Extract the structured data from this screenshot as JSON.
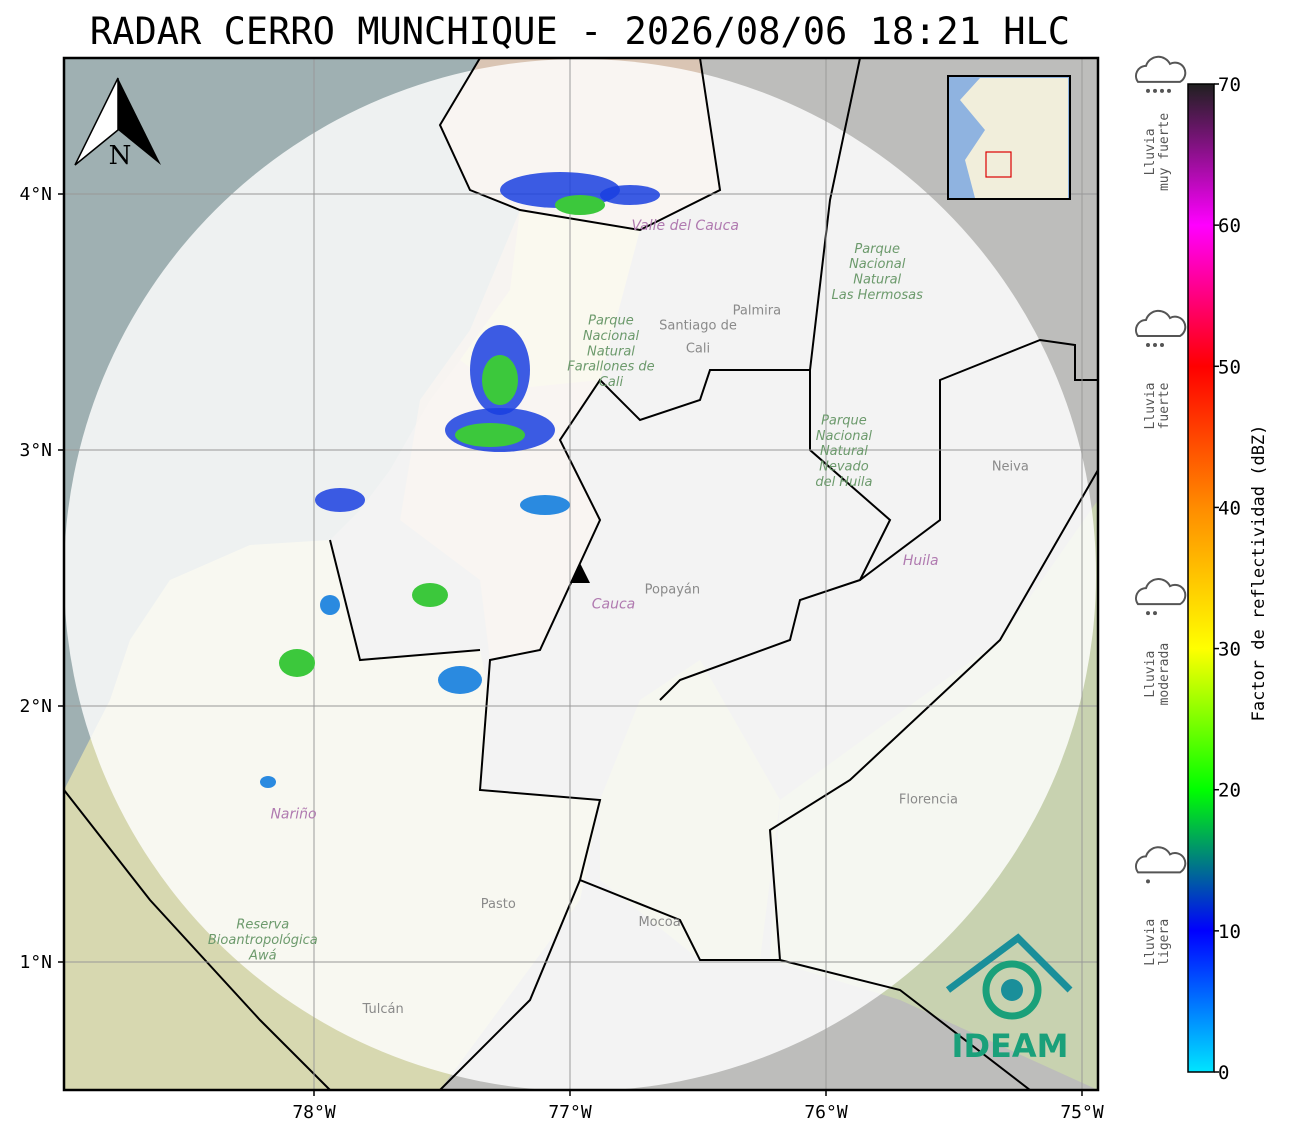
{
  "title": "RADAR CERRO MUNCHIQUE - 2026/08/06 18:21 HLC",
  "map": {
    "lon_ticks": [
      {
        "value": -78,
        "label": "78°W"
      },
      {
        "value": -77,
        "label": "77°W"
      },
      {
        "value": -76,
        "label": "76°W"
      },
      {
        "value": -75,
        "label": "75°W"
      }
    ],
    "lat_ticks": [
      {
        "value": 4,
        "label": "4°N"
      },
      {
        "value": 3,
        "label": "3°N"
      },
      {
        "value": 2,
        "label": "2°N"
      },
      {
        "value": 1,
        "label": "1°N"
      }
    ],
    "north_label": "N",
    "places": [
      {
        "name": "Santiago de",
        "lon": -76.5,
        "lat": 3.47,
        "kind": "city"
      },
      {
        "name": "Cali",
        "lon": -76.5,
        "lat": 3.38,
        "kind": "city"
      },
      {
        "name": "Palmira",
        "lon": -76.27,
        "lat": 3.53,
        "kind": "place"
      },
      {
        "name": "Popayán",
        "lon": -76.6,
        "lat": 2.44,
        "kind": "place"
      },
      {
        "name": "Neiva",
        "lon": -75.28,
        "lat": 2.92,
        "kind": "place"
      },
      {
        "name": "Florencia",
        "lon": -75.6,
        "lat": 1.62,
        "kind": "place"
      },
      {
        "name": "Pasto",
        "lon": -77.28,
        "lat": 1.21,
        "kind": "place"
      },
      {
        "name": "Mocoa",
        "lon": -76.65,
        "lat": 1.14,
        "kind": "place"
      },
      {
        "name": "Tulcán",
        "lon": -77.73,
        "lat": 0.8,
        "kind": "place"
      },
      {
        "name": "Cauca",
        "lon": -76.83,
        "lat": 2.38,
        "kind": "dept"
      },
      {
        "name": "Huila",
        "lon": -75.63,
        "lat": 2.55,
        "kind": "dept"
      },
      {
        "name": "Nariño",
        "lon": -78.08,
        "lat": 1.56,
        "kind": "dept"
      },
      {
        "name": "Valle del Cauca",
        "lon": -76.55,
        "lat": 3.86,
        "kind": "dept"
      },
      {
        "name": "Parque",
        "lon": -76.84,
        "lat": 3.49,
        "kind": "park"
      },
      {
        "name": "Nacional",
        "lon": -76.84,
        "lat": 3.43,
        "kind": "park"
      },
      {
        "name": "Natural",
        "lon": -76.84,
        "lat": 3.37,
        "kind": "park"
      },
      {
        "name": "Farallones de",
        "lon": -76.84,
        "lat": 3.31,
        "kind": "park"
      },
      {
        "name": "Cali",
        "lon": -76.84,
        "lat": 3.25,
        "kind": "park"
      },
      {
        "name": "Parque",
        "lon": -75.8,
        "lat": 3.77,
        "kind": "park"
      },
      {
        "name": "Nacional",
        "lon": -75.8,
        "lat": 3.71,
        "kind": "park"
      },
      {
        "name": "Natural",
        "lon": -75.8,
        "lat": 3.65,
        "kind": "park"
      },
      {
        "name": "Las Hermosas",
        "lon": -75.8,
        "lat": 3.59,
        "kind": "park"
      },
      {
        "name": "Parque",
        "lon": -75.93,
        "lat": 3.1,
        "kind": "park"
      },
      {
        "name": "Nacional",
        "lon": -75.93,
        "lat": 3.04,
        "kind": "park"
      },
      {
        "name": "Natural",
        "lon": -75.93,
        "lat": 2.98,
        "kind": "park"
      },
      {
        "name": "Nevado",
        "lon": -75.93,
        "lat": 2.92,
        "kind": "park"
      },
      {
        "name": "del Huila",
        "lon": -75.93,
        "lat": 2.86,
        "kind": "park"
      },
      {
        "name": "Reserva",
        "lon": -78.2,
        "lat": 1.13,
        "kind": "park"
      },
      {
        "name": "Bioantropológica",
        "lon": -78.2,
        "lat": 1.07,
        "kind": "park"
      },
      {
        "name": "Awá",
        "lon": -78.2,
        "lat": 1.01,
        "kind": "park"
      }
    ]
  },
  "colorbar": {
    "label": "Factor de reflectividad (dBZ)",
    "range": [
      0,
      70
    ],
    "ticks": [
      0,
      10,
      20,
      30,
      40,
      50,
      60,
      70
    ],
    "colors": [
      "#00e5ff",
      "#0000ff",
      "#00ff00",
      "#ffff00",
      "#ff8c00",
      "#ff0000",
      "#ff00ff",
      "#202020"
    ]
  },
  "rain_levels": [
    {
      "lines": [
        "Lluvia",
        "ligera"
      ],
      "dbz": 6
    },
    {
      "lines": [
        "Lluvia",
        "moderada"
      ],
      "dbz": 25
    },
    {
      "lines": [
        "Lluvia",
        "fuerte"
      ],
      "dbz": 44
    },
    {
      "lines": [
        "Lluvia",
        "muy fuerte"
      ],
      "dbz": 62
    }
  ],
  "logo": "IDEAM"
}
